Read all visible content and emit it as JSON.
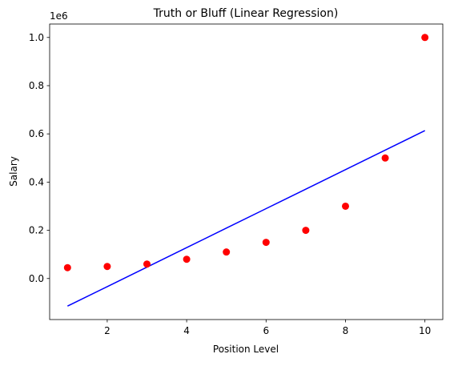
{
  "chart_data": {
    "type": "scatter_line",
    "title": "Truth or Bluff (Linear Regression)",
    "x_label": "Position Level",
    "y_label": "Salary",
    "y_offset_label": "1e6",
    "series": [
      {
        "name": null,
        "kind": "scatter",
        "color": "#ff0000",
        "x": [
          1,
          2,
          3,
          4,
          5,
          6,
          7,
          8,
          9,
          10
        ],
        "values": [
          0.045,
          0.05,
          0.06,
          0.08,
          0.11,
          0.15,
          0.2,
          0.3,
          0.5,
          1.0
        ]
      },
      {
        "name": null,
        "kind": "line",
        "color": "#0000ff",
        "x": [
          1,
          2,
          3,
          4,
          5,
          6,
          7,
          8,
          9,
          10
        ],
        "values": [
          -0.1145,
          -0.0337,
          0.0472,
          0.1281,
          0.209,
          0.2899,
          0.3708,
          0.4517,
          0.5326,
          0.6135
        ]
      }
    ],
    "xlim": [
      0.55,
      10.45
    ],
    "ylim": [
      -0.1702,
      1.0557
    ],
    "xticks": [
      2,
      4,
      6,
      8,
      10
    ],
    "yticks": [
      {
        "value": 0,
        "label": "0.0"
      },
      0.2,
      0.4,
      0.6,
      0.8,
      {
        "value": 1,
        "label": "1.0"
      }
    ],
    "grid": false
  }
}
